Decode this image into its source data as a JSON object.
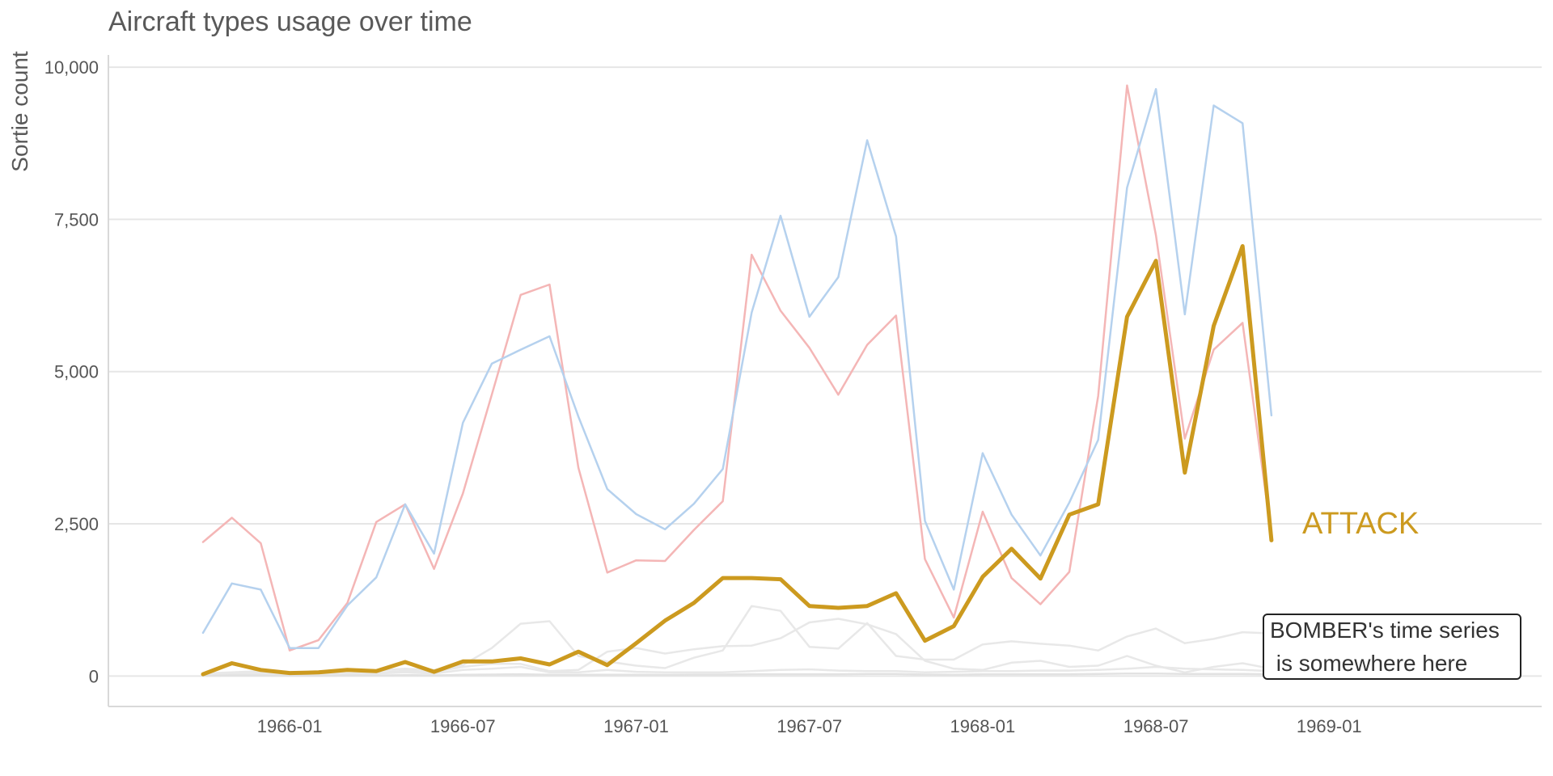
{
  "chart_data": {
    "type": "line",
    "title": "Aircraft types usage over time",
    "xlabel": "",
    "ylabel": "Sortie count",
    "x_tick_labels": [
      "1966-01",
      "1966-07",
      "1967-01",
      "1967-07",
      "1968-01",
      "1968-07",
      "1969-01"
    ],
    "y_tick_labels": [
      "0",
      "2,500",
      "5,000",
      "7,500",
      "10,000"
    ],
    "ylim": [
      -500,
      10200
    ],
    "grid": true,
    "x_start": "1965-10",
    "series": [
      {
        "name": "",
        "color": "#f4b6b6",
        "values": [
          2200,
          2600,
          2180,
          420,
          590,
          1200,
          2530,
          2820,
          1760,
          3000,
          4620,
          6260,
          6430,
          3420,
          1700,
          1900,
          1890,
          2400,
          2870,
          6920,
          6000,
          5390,
          4620,
          5440,
          5920,
          1920,
          960,
          2700,
          1610,
          1180,
          1710,
          4600,
          9700,
          7240,
          3900,
          5360,
          5800,
          2300
        ]
      },
      {
        "name": "",
        "color": "#b5d1ee",
        "values": [
          710,
          1520,
          1420,
          460,
          460,
          1160,
          1620,
          2820,
          2010,
          4160,
          5130,
          5360,
          5580,
          4260,
          3070,
          2660,
          2410,
          2830,
          3400,
          5970,
          7560,
          5900,
          6550,
          8800,
          7220,
          2550,
          1420,
          3660,
          2650,
          1980,
          2850,
          3880,
          8020,
          9640,
          5940,
          9370,
          9080,
          4280
        ]
      },
      {
        "name": "",
        "color": "#e8e8e8",
        "values": [
          40,
          60,
          80,
          50,
          50,
          80,
          90,
          120,
          100,
          180,
          460,
          860,
          900,
          330,
          240,
          170,
          130,
          300,
          420,
          1150,
          1070,
          480,
          450,
          870,
          330,
          270,
          270,
          520,
          570,
          530,
          500,
          420,
          650,
          780,
          540,
          610,
          720,
          700
        ]
      },
      {
        "name": "",
        "color": "#e8e8e8",
        "values": [
          30,
          40,
          50,
          30,
          30,
          40,
          50,
          90,
          70,
          150,
          200,
          200,
          80,
          100,
          400,
          460,
          370,
          440,
          490,
          500,
          620,
          880,
          940,
          850,
          690,
          250,
          120,
          100,
          220,
          250,
          150,
          170,
          330,
          170,
          60,
          150,
          210,
          120
        ]
      },
      {
        "name": "",
        "color": "#e8e8e8",
        "values": [
          20,
          30,
          30,
          20,
          20,
          30,
          40,
          60,
          40,
          100,
          120,
          150,
          60,
          60,
          100,
          70,
          60,
          60,
          60,
          80,
          100,
          110,
          90,
          80,
          80,
          60,
          70,
          80,
          80,
          90,
          90,
          100,
          120,
          150,
          120,
          110,
          100,
          80
        ]
      },
      {
        "name": "",
        "color": "#e2e2e2",
        "values": [
          5,
          10,
          10,
          5,
          5,
          10,
          10,
          15,
          10,
          20,
          25,
          30,
          20,
          20,
          20,
          20,
          20,
          25,
          25,
          30,
          30,
          30,
          30,
          35,
          35,
          25,
          20,
          30,
          30,
          30,
          30,
          35,
          40,
          40,
          35,
          35,
          35,
          30
        ]
      },
      {
        "name": "ATTACK",
        "color": "#cc9a1f",
        "values": [
          30,
          210,
          100,
          50,
          60,
          100,
          80,
          230,
          70,
          240,
          240,
          290,
          190,
          400,
          180,
          540,
          910,
          1200,
          1610,
          1610,
          1590,
          1150,
          1120,
          1150,
          1360,
          580,
          820,
          1630,
          2090,
          1600,
          2650,
          2820,
          5900,
          6820,
          3340,
          5750,
          7060,
          2230
        ]
      }
    ],
    "highlight_label": "ATTACK",
    "annotation": {
      "lines": [
        "BOMBER's time series",
        " is somewhere here"
      ]
    }
  }
}
